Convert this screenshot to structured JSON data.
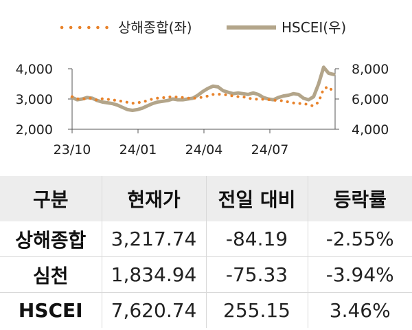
{
  "chart_data": {
    "type": "line",
    "legend_position": "top",
    "grid": false,
    "x_ticks": [
      "23/10",
      "24/01",
      "24/04",
      "24/07"
    ],
    "y_left": {
      "label": "",
      "ylim": [
        2000,
        4000
      ],
      "ticks": [
        "2,000",
        "3,000",
        "4,000"
      ]
    },
    "y_right": {
      "label": "",
      "ylim": [
        4000,
        8000
      ],
      "ticks": [
        "4,000",
        "6,000",
        "8,000"
      ]
    },
    "series": [
      {
        "name": "상해종합(좌)",
        "axis": "left",
        "style": "dotted",
        "color": "#e8822a",
        "values": [
          3080,
          3010,
          2990,
          3020,
          3030,
          2960,
          3010,
          2990,
          2970,
          2950,
          2920,
          2890,
          2860,
          2880,
          2900,
          2950,
          3000,
          3030,
          3040,
          3060,
          3080,
          3060,
          3050,
          3030,
          3020,
          3040,
          3060,
          3100,
          3150,
          3160,
          3150,
          3130,
          3100,
          3080,
          3070,
          3030,
          3000,
          2990,
          2990,
          2980,
          2960,
          2950,
          2940,
          2900,
          2870,
          2850,
          2860,
          2800,
          2770,
          2900,
          3340,
          3410,
          3218
        ]
      },
      {
        "name": "HSCEI(우)",
        "axis": "right",
        "style": "solid",
        "color": "#b3a58a",
        "values": [
          6100,
          5950,
          6000,
          6100,
          6050,
          5900,
          5800,
          5750,
          5700,
          5600,
          5450,
          5300,
          5250,
          5300,
          5400,
          5550,
          5700,
          5800,
          5850,
          5900,
          6000,
          5950,
          5950,
          6000,
          6050,
          6250,
          6500,
          6700,
          6850,
          6800,
          6550,
          6450,
          6350,
          6400,
          6350,
          6300,
          6400,
          6300,
          6100,
          6000,
          5950,
          6100,
          6200,
          6250,
          6350,
          6300,
          6050,
          5950,
          6150,
          7000,
          8100,
          7700,
          7621
        ]
      }
    ]
  },
  "table": {
    "headers": [
      "구분",
      "현재가",
      "전일 대비",
      "등락률"
    ],
    "rows": [
      [
        "상해종합",
        "3,217.74",
        "-84.19",
        "-2.55%"
      ],
      [
        "심천",
        "1,834.94",
        "-75.33",
        "-3.94%"
      ],
      [
        "HSCEI",
        "7,620.74",
        "255.15",
        "3.46%"
      ]
    ]
  }
}
